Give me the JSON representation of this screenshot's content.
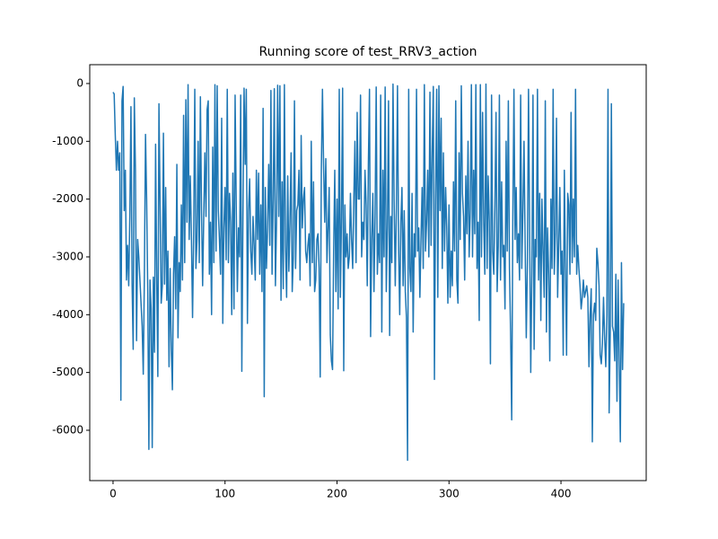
{
  "chart_data": {
    "type": "line",
    "title": "Running score of test_RRV3_action",
    "xlim": [
      -20.8,
      476.1
    ],
    "ylim": [
      -6871,
      326
    ],
    "xticks": [
      0,
      100,
      200,
      300,
      400
    ],
    "yticks": [
      -6000,
      -5000,
      -4000,
      -3000,
      -2000,
      -1000,
      0
    ],
    "x": [
      0,
      1,
      2,
      3,
      4,
      5,
      6,
      7,
      8,
      9,
      10,
      11,
      12,
      13,
      14,
      15,
      16,
      17,
      18,
      19,
      20,
      21,
      22,
      23,
      24,
      25,
      26,
      27,
      28,
      29,
      30,
      31,
      32,
      33,
      34,
      35,
      36,
      37,
      38,
      39,
      40,
      41,
      42,
      43,
      44,
      45,
      46,
      47,
      48,
      49,
      50,
      51,
      52,
      53,
      54,
      55,
      56,
      57,
      58,
      59,
      60,
      61,
      62,
      63,
      64,
      65,
      66,
      67,
      68,
      69,
      70,
      71,
      72,
      73,
      74,
      75,
      76,
      77,
      78,
      79,
      80,
      81,
      82,
      83,
      84,
      85,
      86,
      87,
      88,
      89,
      90,
      91,
      92,
      93,
      94,
      95,
      96,
      97,
      98,
      99,
      100,
      101,
      102,
      103,
      104,
      105,
      106,
      107,
      108,
      109,
      110,
      111,
      112,
      113,
      114,
      115,
      116,
      117,
      118,
      119,
      120,
      121,
      122,
      123,
      124,
      125,
      126,
      127,
      128,
      129,
      130,
      131,
      132,
      133,
      134,
      135,
      136,
      137,
      138,
      139,
      140,
      141,
      142,
      143,
      144,
      145,
      146,
      147,
      148,
      149,
      150,
      151,
      152,
      153,
      154,
      155,
      156,
      157,
      158,
      159,
      160,
      161,
      162,
      163,
      164,
      165,
      166,
      167,
      168,
      169,
      170,
      171,
      172,
      173,
      174,
      175,
      176,
      177,
      178,
      179,
      180,
      181,
      182,
      183,
      184,
      185,
      186,
      187,
      188,
      189,
      190,
      191,
      192,
      193,
      194,
      195,
      196,
      197,
      198,
      199,
      200,
      201,
      202,
      203,
      204,
      205,
      206,
      207,
      208,
      209,
      210,
      211,
      212,
      213,
      214,
      215,
      216,
      217,
      218,
      219,
      220,
      221,
      222,
      223,
      224,
      225,
      226,
      227,
      228,
      229,
      230,
      231,
      232,
      233,
      234,
      235,
      236,
      237,
      238,
      239,
      240,
      241,
      242,
      243,
      244,
      245,
      246,
      247,
      248,
      249,
      250,
      251,
      252,
      253,
      254,
      255,
      256,
      257,
      258,
      259,
      260,
      261,
      262,
      263,
      264,
      265,
      266,
      267,
      268,
      269,
      270,
      271,
      272,
      273,
      274,
      275,
      276,
      277,
      278,
      279,
      280,
      281,
      282,
      283,
      284,
      285,
      286,
      287,
      288,
      289,
      290,
      291,
      292,
      293,
      294,
      295,
      296,
      297,
      298,
      299,
      300,
      301,
      302,
      303,
      304,
      305,
      306,
      307,
      308,
      309,
      310,
      311,
      312,
      313,
      314,
      315,
      316,
      317,
      318,
      319,
      320,
      321,
      322,
      323,
      324,
      325,
      326,
      327,
      328,
      329,
      330,
      331,
      332,
      333,
      334,
      335,
      336,
      337,
      338,
      339,
      340,
      341,
      342,
      343,
      344,
      345,
      346,
      347,
      348,
      349,
      350,
      351,
      352,
      353,
      354,
      355,
      356,
      357,
      358,
      359,
      360,
      361,
      362,
      363,
      364,
      365,
      366,
      367,
      368,
      369,
      370,
      371,
      372,
      373,
      374,
      375,
      376,
      377,
      378,
      379,
      380,
      381,
      382,
      383,
      384,
      385,
      386,
      387,
      388,
      389,
      390,
      391,
      392,
      393,
      394,
      395,
      396,
      397,
      398,
      399,
      400,
      401,
      402,
      403,
      404,
      405,
      406,
      407,
      408,
      409,
      410,
      411,
      412,
      413,
      414,
      415,
      416,
      417,
      418,
      419,
      420,
      421,
      422,
      423,
      424,
      425,
      426,
      427,
      428,
      429,
      430,
      431,
      432,
      433,
      434,
      435,
      436,
      437,
      438,
      439,
      440,
      441,
      442,
      443,
      444,
      445,
      446,
      447,
      448,
      449,
      450,
      451,
      452,
      453,
      454,
      455,
      456
    ],
    "series": [
      {
        "color": "#1f77b4",
        "values": [
          -150,
          -180,
          -900,
          -1500,
          -1000,
          -1500,
          -1200,
          -5480,
          -300,
          -50,
          -2200,
          -1500,
          -3400,
          -2800,
          -3500,
          -2300,
          -400,
          -3450,
          -4600,
          -250,
          -1500,
          -4450,
          -2700,
          -3000,
          -3400,
          -3800,
          -4200,
          -5030,
          -3300,
          -880,
          -2000,
          -3600,
          -6330,
          -3400,
          -3900,
          -6300,
          -3350,
          -4650,
          -1050,
          -3350,
          -5070,
          -350,
          -2100,
          -3800,
          -3500,
          -860,
          -3470,
          -1800,
          -3750,
          -2900,
          -4900,
          -3200,
          -4600,
          -5300,
          -3300,
          -2650,
          -3900,
          -1400,
          -4400,
          -3100,
          -3600,
          -2100,
          -3400,
          -550,
          -3100,
          -280,
          -2400,
          -20,
          -2700,
          -1600,
          -2650,
          -4050,
          -2600,
          -100,
          -3200,
          -2700,
          -1000,
          -3100,
          -230,
          -2200,
          -3500,
          -2300,
          -1200,
          -2300,
          -450,
          -300,
          -3300,
          -2400,
          -4000,
          -1100,
          -3100,
          -20,
          -2900,
          -40,
          -2200,
          -2700,
          -3300,
          -600,
          -4150,
          -2500,
          -1800,
          -3050,
          -100,
          -3100,
          -1900,
          -2400,
          -4000,
          -1550,
          -3900,
          -200,
          -2100,
          -3600,
          -2500,
          -3000,
          -200,
          -4980,
          -2300,
          -80,
          -1400,
          -100,
          -4150,
          -2200,
          -1650,
          -2900,
          -3300,
          -2300,
          -2800,
          -3400,
          -1500,
          -2700,
          -1550,
          -3300,
          -2100,
          -3600,
          -430,
          -5420,
          -1800,
          -3200,
          -2500,
          -1400,
          -2800,
          -120,
          -3300,
          -2000,
          -90,
          -3500,
          -2400,
          -30,
          -2300,
          -40,
          -3750,
          -1700,
          -3550,
          -20,
          -2800,
          -3700,
          -1600,
          -3250,
          -2400,
          -1200,
          -3600,
          -3000,
          -300,
          -3200,
          -2200,
          -2100,
          -1500,
          -3400,
          -900,
          -2500,
          -2000,
          -1800,
          -2900,
          -3100,
          -2800,
          -2600,
          -3500,
          -1000,
          -3100,
          -1700,
          -3600,
          -3400,
          -2700,
          -2600,
          -3200,
          -5080,
          -1500,
          -100,
          -1400,
          -2400,
          -1300,
          -3100,
          -2500,
          -1800,
          -4350,
          -4800,
          -4950,
          -2900,
          -1500,
          -3600,
          -2000,
          -3900,
          -100,
          -3700,
          -2300,
          -80,
          -4970,
          -2100,
          -3000,
          -2600,
          -3200,
          -3000,
          -1900,
          -2700,
          -3200,
          -2000,
          -1000,
          -3100,
          -500,
          -2000,
          -2000,
          -200,
          -3000,
          -2400,
          -2700,
          -1500,
          -2100,
          -3500,
          -1400,
          -100,
          -4380,
          -2700,
          -1900,
          -3600,
          -2300,
          -60,
          -3300,
          -2600,
          -3100,
          -200,
          -4300,
          -1500,
          -3000,
          -60,
          -3600,
          -2500,
          -300,
          -4360,
          -2300,
          -3100,
          -10,
          -2000,
          -3500,
          -2200,
          -40,
          -2800,
          -4000,
          -2400,
          -1800,
          -3500,
          -2200,
          -3600,
          -4050,
          -6520,
          -100,
          -3200,
          -3600,
          -1900,
          -4300,
          -2600,
          -3000,
          -100,
          -2900,
          -2500,
          -3700,
          -2700,
          -1800,
          -3200,
          -20,
          -2900,
          -2400,
          -1500,
          -3000,
          -150,
          -2800,
          -1200,
          -50,
          -5120,
          -2000,
          -100,
          -3700,
          -40,
          -2200,
          -600,
          -3200,
          -1200,
          -2900,
          -1800,
          -2500,
          -3800,
          -2100,
          -3700,
          -2900,
          -3500,
          -1700,
          -2900,
          -300,
          -3400,
          -3800,
          -1200,
          -2700,
          -40,
          -1900,
          -2300,
          -3400,
          -1600,
          -2600,
          -1000,
          -3000,
          -2200,
          -20,
          -3000,
          -1500,
          -2600,
          -20,
          -3200,
          -2400,
          -4100,
          -20,
          -3000,
          -500,
          -2400,
          -3300,
          -10,
          -3200,
          -1600,
          -2400,
          -4850,
          -200,
          -2900,
          -3300,
          -2100,
          -500,
          -3600,
          -2800,
          -200,
          -3400,
          -1700,
          -3000,
          -2800,
          -3900,
          -1000,
          -2900,
          -300,
          -3200,
          -4300,
          -5820,
          -2400,
          -100,
          -2700,
          -1800,
          -3100,
          -2600,
          -3400,
          -200,
          -3200,
          -2200,
          -1000,
          -2800,
          -4400,
          -3100,
          -100,
          -2500,
          -5000,
          -3300,
          -200,
          -4600,
          -2700,
          -3000,
          -100,
          -3400,
          -1900,
          -4100,
          -2000,
          -2900,
          -3700,
          -300,
          -4300,
          -2500,
          -3300,
          -4800,
          -2000,
          -3200,
          -100,
          -3300,
          -2600,
          -600,
          -3700,
          -2800,
          -1800,
          -3300,
          -2900,
          -4700,
          -1500,
          -3200,
          -4700,
          -1900,
          -2100,
          -3300,
          -500,
          -3100,
          -2000,
          -3000,
          -100,
          -3300,
          -2800,
          -3200,
          -3500,
          -3900,
          -3700,
          -3400,
          -3700,
          -3600,
          -3500,
          -3700,
          -4900,
          -4000,
          -3550,
          -6200,
          -4000,
          -3800,
          -4100,
          -2850,
          -3100,
          -3500,
          -4700,
          -4850,
          -4500,
          -3700,
          -4400,
          -4900,
          -4000,
          -100,
          -5700,
          -4300,
          -350,
          -4200,
          -4300,
          -4800,
          -3300,
          -5500,
          -3400,
          -4800,
          -6200,
          -3100,
          -4950,
          -3800
        ]
      }
    ]
  }
}
